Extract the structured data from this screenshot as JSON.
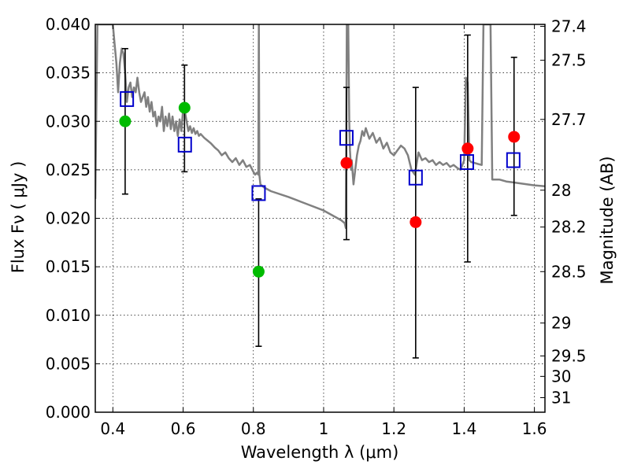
{
  "chart_data": {
    "type": "scatter",
    "xlabel": "Wavelength  λ (μm)",
    "ylabel_left": "Flux  Fν  ( μJy )",
    "ylabel_right": "Magnitude (AB)",
    "xlim": [
      0.35,
      1.63
    ],
    "ylim": [
      0.0,
      0.04
    ],
    "grid": true,
    "x_ticks": [
      0.4,
      0.6,
      0.8,
      1.0,
      1.2,
      1.4,
      1.6
    ],
    "x_tick_labels": [
      "0.4",
      "0.6",
      "0.8",
      "1",
      "1.2",
      "1.4",
      "1.6"
    ],
    "y_ticks": [
      0.0,
      0.005,
      0.01,
      0.015,
      0.02,
      0.025,
      0.03,
      0.035,
      0.04
    ],
    "y_tick_labels": [
      "0.000",
      "0.005",
      "0.010",
      "0.015",
      "0.020",
      "0.025",
      "0.030",
      "0.035",
      "0.040"
    ],
    "right_ticks": [
      {
        "flux": 0.0398,
        "label": "27.4"
      },
      {
        "flux": 0.0363,
        "label": "27.5"
      },
      {
        "flux": 0.0302,
        "label": "27.7"
      },
      {
        "flux": 0.0229,
        "label": "28"
      },
      {
        "flux": 0.0191,
        "label": "28.2"
      },
      {
        "flux": 0.0145,
        "label": "28.5"
      },
      {
        "flux": 0.0092,
        "label": "29"
      },
      {
        "flux": 0.0058,
        "label": "29.5"
      },
      {
        "flux": 0.0037,
        "label": "30"
      },
      {
        "flux": 0.0015,
        "label": "31"
      }
    ],
    "series": [
      {
        "name": "model-spectrum",
        "kind": "line",
        "color": "#808080",
        "x": [
          0.35,
          0.353,
          0.356,
          0.36,
          0.363,
          0.366,
          0.37,
          0.375,
          0.38,
          0.385,
          0.39,
          0.395,
          0.4,
          0.405,
          0.41,
          0.415,
          0.42,
          0.425,
          0.43,
          0.435,
          0.44,
          0.445,
          0.45,
          0.455,
          0.46,
          0.465,
          0.47,
          0.475,
          0.48,
          0.485,
          0.49,
          0.495,
          0.5,
          0.505,
          0.51,
          0.515,
          0.52,
          0.525,
          0.53,
          0.535,
          0.54,
          0.545,
          0.55,
          0.555,
          0.56,
          0.565,
          0.57,
          0.575,
          0.58,
          0.585,
          0.59,
          0.595,
          0.6,
          0.605,
          0.61,
          0.615,
          0.62,
          0.625,
          0.63,
          0.635,
          0.64,
          0.645,
          0.65,
          0.66,
          0.67,
          0.68,
          0.69,
          0.7,
          0.71,
          0.72,
          0.73,
          0.74,
          0.75,
          0.76,
          0.77,
          0.78,
          0.79,
          0.8,
          0.805,
          0.81,
          0.814,
          0.8155,
          0.817,
          0.82,
          0.83,
          0.85,
          0.9,
          0.95,
          1.0,
          1.03,
          1.05,
          1.06,
          1.063,
          1.066,
          1.068,
          1.07,
          1.073,
          1.075,
          1.078,
          1.08,
          1.085,
          1.09,
          1.095,
          1.1,
          1.105,
          1.11,
          1.115,
          1.12,
          1.13,
          1.14,
          1.15,
          1.16,
          1.17,
          1.18,
          1.19,
          1.2,
          1.21,
          1.22,
          1.23,
          1.24,
          1.25,
          1.26,
          1.27,
          1.28,
          1.29,
          1.3,
          1.31,
          1.32,
          1.33,
          1.34,
          1.35,
          1.36,
          1.37,
          1.38,
          1.39,
          1.4,
          1.405,
          1.41,
          1.415,
          1.42,
          1.43,
          1.44,
          1.45,
          1.455,
          1.46,
          1.465,
          1.47,
          1.475,
          1.48,
          1.5,
          1.52,
          1.54,
          1.56,
          1.58,
          1.6,
          1.63
        ],
        "y": [
          0.022,
          0.031,
          0.04,
          0.04,
          0.04,
          0.04,
          0.04,
          0.04,
          0.04,
          0.04,
          0.04,
          0.04,
          0.04,
          0.038,
          0.036,
          0.033,
          0.036,
          0.0375,
          0.037,
          0.035,
          0.032,
          0.0335,
          0.034,
          0.0325,
          0.0335,
          0.033,
          0.0345,
          0.033,
          0.032,
          0.0325,
          0.033,
          0.0315,
          0.0325,
          0.031,
          0.032,
          0.0305,
          0.031,
          0.0295,
          0.0305,
          0.03,
          0.0315,
          0.029,
          0.0305,
          0.0295,
          0.0308,
          0.0292,
          0.0305,
          0.029,
          0.03,
          0.0285,
          0.0302,
          0.029,
          0.0312,
          0.031,
          0.03,
          0.029,
          0.0295,
          0.0288,
          0.0293,
          0.0287,
          0.029,
          0.0285,
          0.0287,
          0.0283,
          0.028,
          0.0277,
          0.0273,
          0.027,
          0.0265,
          0.0268,
          0.0262,
          0.0258,
          0.0262,
          0.0255,
          0.026,
          0.0253,
          0.0255,
          0.0248,
          0.0245,
          0.0247,
          0.0245,
          0.04,
          0.0245,
          0.0235,
          0.0232,
          0.0228,
          0.0222,
          0.0215,
          0.0208,
          0.0202,
          0.0198,
          0.0195,
          0.019,
          0.04,
          0.04,
          0.04,
          0.03,
          0.027,
          0.025,
          0.026,
          0.0235,
          0.025,
          0.0265,
          0.0275,
          0.028,
          0.029,
          0.0285,
          0.0293,
          0.0282,
          0.0288,
          0.0278,
          0.0283,
          0.0272,
          0.0278,
          0.0268,
          0.0265,
          0.027,
          0.0275,
          0.0272,
          0.0265,
          0.025,
          0.0245,
          0.0268,
          0.026,
          0.0262,
          0.0258,
          0.026,
          0.0255,
          0.0258,
          0.0255,
          0.0257,
          0.0253,
          0.0255,
          0.0252,
          0.025,
          0.026,
          0.0345,
          0.034,
          0.026,
          0.0258,
          0.0257,
          0.0256,
          0.0255,
          0.04,
          0.04,
          0.04,
          0.04,
          0.04,
          0.024,
          0.024,
          0.0238,
          0.0237,
          0.0236,
          0.0235,
          0.0234,
          0.0233
        ]
      },
      {
        "name": "model-flux-squares",
        "kind": "open-square",
        "color": "#0000cc",
        "x": [
          0.44,
          0.605,
          0.815,
          1.065,
          1.262,
          1.408,
          1.54
        ],
        "y": [
          0.0323,
          0.0276,
          0.0226,
          0.0283,
          0.0242,
          0.0258,
          0.026
        ]
      },
      {
        "name": "measured-flux",
        "kind": "errorbar",
        "color": "#000000",
        "x": [
          0.435,
          0.604,
          0.815,
          1.065,
          1.262,
          1.41,
          1.542
        ],
        "y": [
          0.03,
          0.0314,
          0.0145,
          0.0257,
          0.0196,
          0.0272,
          0.0284
        ],
        "err_low": [
          0.0225,
          0.0248,
          0.0068,
          0.0178,
          0.0056,
          0.0155,
          0.0203
        ],
        "err_high": [
          0.0375,
          0.0358,
          0.022,
          0.0335,
          0.0335,
          0.0389,
          0.0366
        ],
        "marker_colors": [
          "#00bb00",
          "#00bb00",
          "#00bb00",
          "#ff0000",
          "#ff0000",
          "#ff0000",
          "#ff0000"
        ]
      }
    ]
  }
}
